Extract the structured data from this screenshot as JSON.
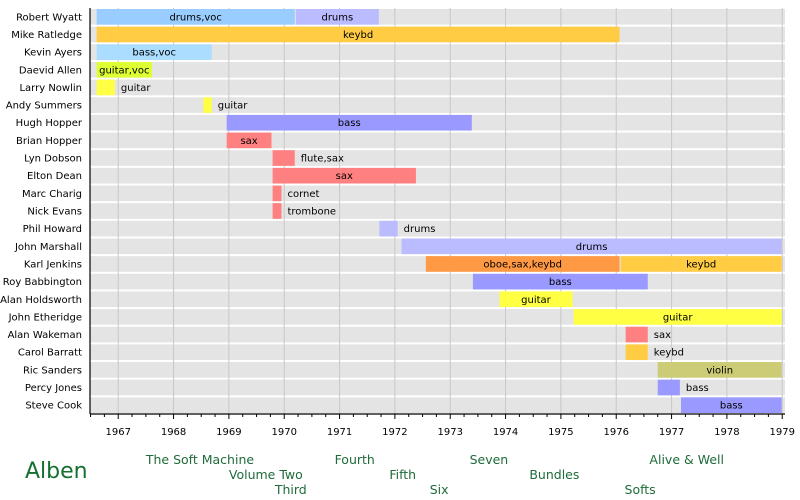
{
  "chart_data": {
    "type": "timeline",
    "xlim": [
      1966.49,
      1979.05
    ],
    "x_ticks": [
      "1967",
      "1968",
      "1969",
      "1970",
      "1971",
      "1972",
      "1973",
      "1974",
      "1975",
      "1976",
      "1977",
      "1978",
      "1979"
    ],
    "grid": true,
    "members": [
      {
        "name": "Robert Wyatt",
        "spans": [
          {
            "start": 1966.61,
            "end": 1970.19,
            "label": "drums,voc",
            "color": "#99ccff"
          },
          {
            "start": 1970.21,
            "end": 1971.71,
            "label": "drums",
            "color": "#bbbbff"
          }
        ]
      },
      {
        "name": "Mike Ratledge",
        "spans": [
          {
            "start": 1966.61,
            "end": 1976.06,
            "label": "keybd",
            "color": "#ffcc44"
          }
        ]
      },
      {
        "name": "Kevin Ayers",
        "spans": [
          {
            "start": 1966.61,
            "end": 1968.69,
            "label": "bass,voc",
            "color": "#aaddff"
          }
        ]
      },
      {
        "name": "Daevid Allen",
        "spans": [
          {
            "start": 1966.61,
            "end": 1967.61,
            "label": "guitar,voc",
            "color": "#ddff33"
          }
        ]
      },
      {
        "name": "Larry Nowlin",
        "spans": [
          {
            "start": 1966.61,
            "end": 1966.94,
            "label": "guitar",
            "color": "#ffff44",
            "label_outside": true
          }
        ]
      },
      {
        "name": "Andy Summers",
        "spans": [
          {
            "start": 1968.54,
            "end": 1968.69,
            "label": "guitar",
            "color": "#ffff44",
            "label_outside": true
          }
        ]
      },
      {
        "name": "Hugh Hopper",
        "spans": [
          {
            "start": 1968.96,
            "end": 1973.39,
            "label": "bass",
            "color": "#9999ff"
          }
        ]
      },
      {
        "name": "Brian Hopper",
        "spans": [
          {
            "start": 1968.96,
            "end": 1969.77,
            "label": "sax",
            "color": "#ff8080"
          }
        ]
      },
      {
        "name": "Lyn Dobson",
        "spans": [
          {
            "start": 1969.79,
            "end": 1970.19,
            "label": "flute,sax",
            "color": "#ff8080",
            "label_outside": true
          }
        ]
      },
      {
        "name": "Elton Dean",
        "spans": [
          {
            "start": 1969.79,
            "end": 1972.38,
            "label": "sax",
            "color": "#ff8080"
          }
        ]
      },
      {
        "name": "Marc Charig",
        "spans": [
          {
            "start": 1969.79,
            "end": 1969.95,
            "label": "cornet",
            "color": "#ff8080",
            "label_outside": true
          }
        ]
      },
      {
        "name": "Nick Evans",
        "spans": [
          {
            "start": 1969.79,
            "end": 1969.95,
            "label": "trombone",
            "color": "#ff8080",
            "label_outside": true
          }
        ]
      },
      {
        "name": "Phil Howard",
        "spans": [
          {
            "start": 1971.72,
            "end": 1972.05,
            "label": "drums",
            "color": "#bbbbff",
            "label_outside": true
          }
        ]
      },
      {
        "name": "John Marshall",
        "spans": [
          {
            "start": 1972.12,
            "end": 1978.99,
            "label": "drums",
            "color": "#bbbbff"
          }
        ]
      },
      {
        "name": "Karl Jenkins",
        "spans": [
          {
            "start": 1972.56,
            "end": 1976.06,
            "label": "oboe,sax,keybd",
            "color": "#ff9944"
          },
          {
            "start": 1976.08,
            "end": 1978.99,
            "label": "keybd",
            "color": "#ffcc44"
          }
        ]
      },
      {
        "name": "Roy Babbington",
        "spans": [
          {
            "start": 1973.41,
            "end": 1976.57,
            "label": "bass",
            "color": "#9999ff"
          }
        ]
      },
      {
        "name": "Alan Holdsworth",
        "spans": [
          {
            "start": 1973.89,
            "end": 1975.21,
            "label": "guitar",
            "color": "#ffff44"
          }
        ]
      },
      {
        "name": "John Etheridge",
        "spans": [
          {
            "start": 1975.23,
            "end": 1978.99,
            "label": "guitar",
            "color": "#ffff44"
          }
        ]
      },
      {
        "name": "Alan Wakeman",
        "spans": [
          {
            "start": 1976.17,
            "end": 1976.57,
            "label": "sax",
            "color": "#ff8080",
            "label_outside": true
          }
        ]
      },
      {
        "name": "Carol Barratt",
        "spans": [
          {
            "start": 1976.17,
            "end": 1976.57,
            "label": "keybd",
            "color": "#ffcc44",
            "label_outside": true
          }
        ]
      },
      {
        "name": "Ric Sanders",
        "spans": [
          {
            "start": 1976.75,
            "end": 1978.99,
            "label": "violin",
            "color": "#cccc77"
          }
        ]
      },
      {
        "name": "Percy Jones",
        "spans": [
          {
            "start": 1976.75,
            "end": 1977.15,
            "label": "bass",
            "color": "#9999ff",
            "label_outside": true
          }
        ]
      },
      {
        "name": "Steve Cook",
        "spans": [
          {
            "start": 1977.17,
            "end": 1978.99,
            "label": "bass",
            "color": "#9999ff"
          }
        ]
      }
    ],
    "albums_title": "Alben",
    "albums": [
      {
        "title": "The Soft Machine",
        "year": 1967.5,
        "line": 0
      },
      {
        "title": "Volume Two",
        "year": 1969.0,
        "line": 1
      },
      {
        "title": "Third",
        "year": 1969.83,
        "line": 2
      },
      {
        "title": "Fourth",
        "year": 1970.91,
        "line": 0
      },
      {
        "title": "Fifth",
        "year": 1971.9,
        "line": 1
      },
      {
        "title": "Six",
        "year": 1972.63,
        "line": 2
      },
      {
        "title": "Seven",
        "year": 1973.35,
        "line": 0
      },
      {
        "title": "Bundles",
        "year": 1974.43,
        "line": 1
      },
      {
        "title": "Softs",
        "year": 1976.15,
        "line": 2
      },
      {
        "title": "Alive & Well",
        "year": 1976.6,
        "line": 0
      }
    ]
  }
}
